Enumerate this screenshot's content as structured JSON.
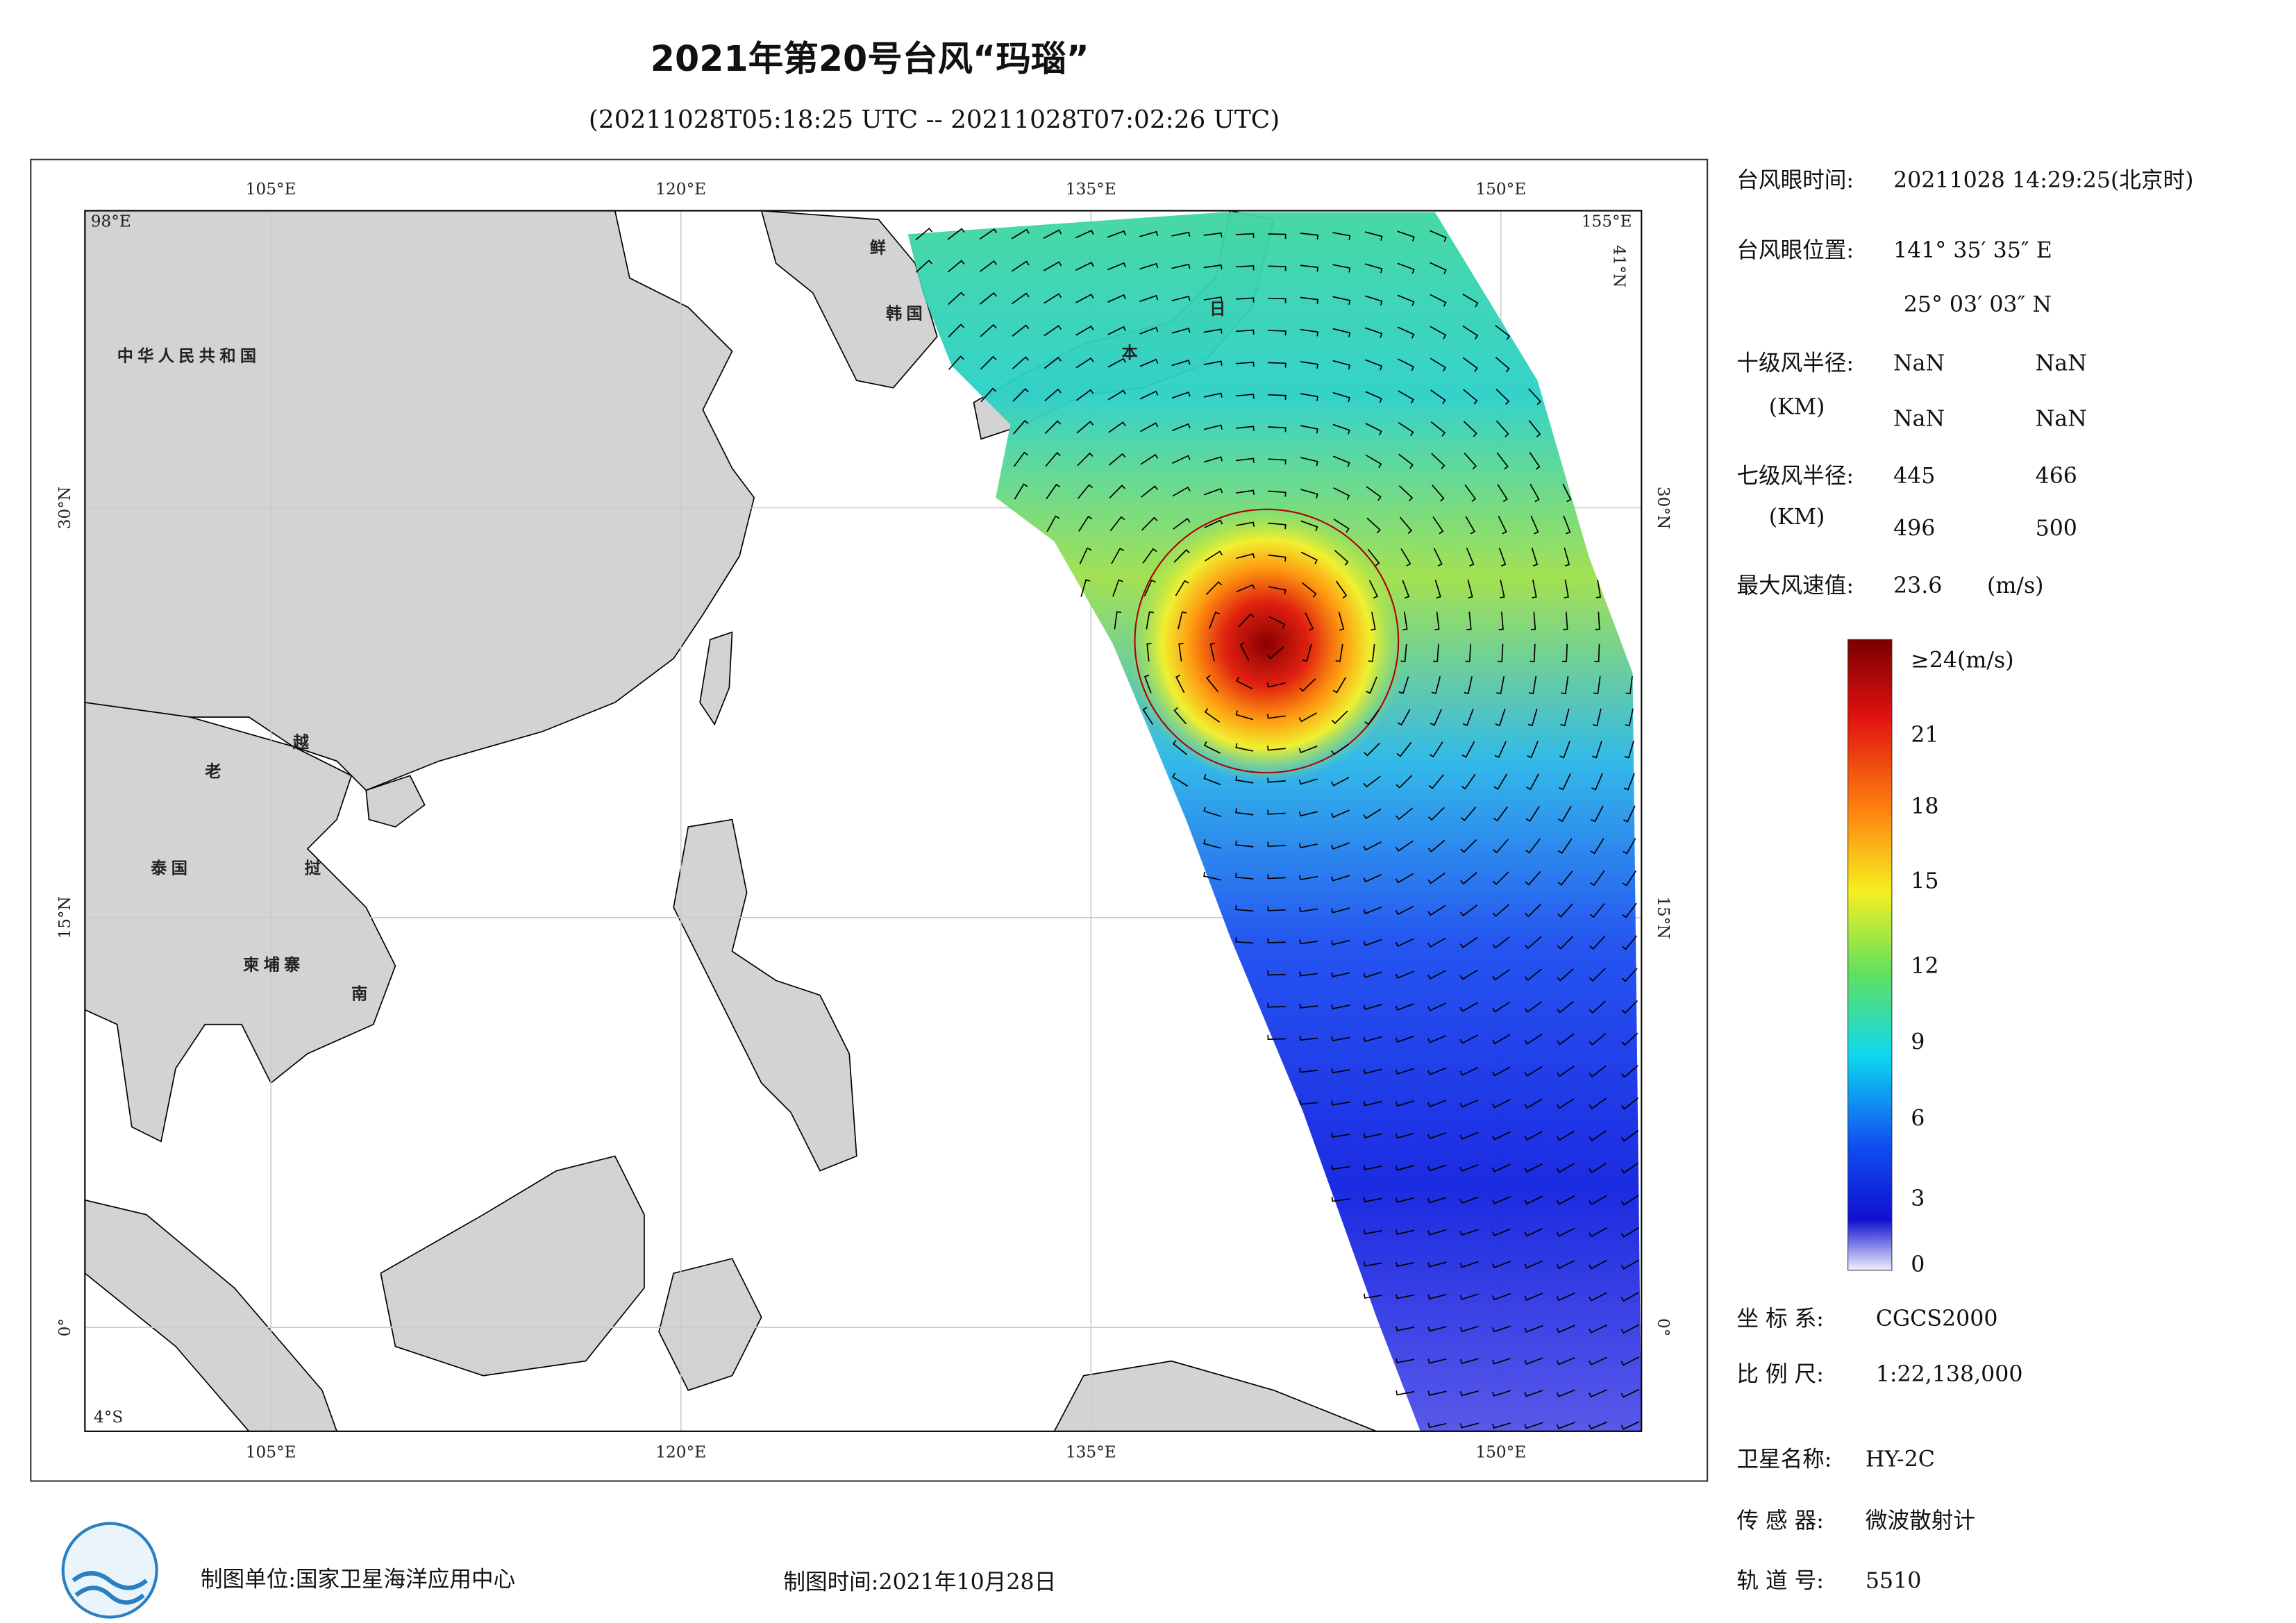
{
  "header": {
    "title": "2021年第20号台风“玛瑙”",
    "subtitle": "(20211028T05:18:25 UTC -- 20211028T07:02:26 UTC)"
  },
  "map": {
    "lon_labels": [
      "105°E",
      "120°E",
      "135°E",
      "150°E"
    ],
    "lat_labels": [
      "30°N",
      "15°N",
      "0°"
    ],
    "corner_labels": [
      "98°E",
      "155°E",
      "4°S",
      "41°N"
    ],
    "place_labels": [
      "中华人民共和国",
      "老",
      "越",
      "泰国",
      "挝",
      "柬埔寨",
      "南",
      "鲜",
      "韩国",
      "日",
      "本"
    ]
  },
  "info": {
    "eye_time_label": "台风眼时间:",
    "eye_time": "20211028 14:29:25(北京时)",
    "eye_pos_label": "台风眼位置:",
    "eye_lon": "141° 35′ 35″ E",
    "eye_lat": "25° 03′ 03″ N",
    "r10_label": "十级风半径:",
    "r10_unit": "(KM)",
    "r10_values": [
      "NaN",
      "NaN",
      "NaN",
      "NaN"
    ],
    "r7_label": "七级风半径:",
    "r7_unit": "(KM)",
    "r7_values": [
      "445",
      "466",
      "496",
      "500"
    ],
    "max_wind_label": "最大风速值:",
    "max_wind": "23.6",
    "max_wind_unit": "(m/s)"
  },
  "colorbar": {
    "labels": [
      "≥24(m/s)",
      "21",
      "18",
      "15",
      "12",
      "9",
      "6",
      "3",
      "0"
    ]
  },
  "meta": {
    "crs_label": "坐 标 系:",
    "crs": "CGCS2000",
    "scale_label": "比 例 尺:",
    "scale": "1:22,138,000",
    "satellite_label": "卫星名称:",
    "satellite": "HY-2C",
    "sensor_label": "传 感 器:",
    "sensor": "微波散射计",
    "orbit_label": "轨 道 号:",
    "orbit": "5510"
  },
  "footer": {
    "producer": "制图单位:国家卫星海洋应用中心",
    "date": "制图时间:2021年10月28日"
  }
}
